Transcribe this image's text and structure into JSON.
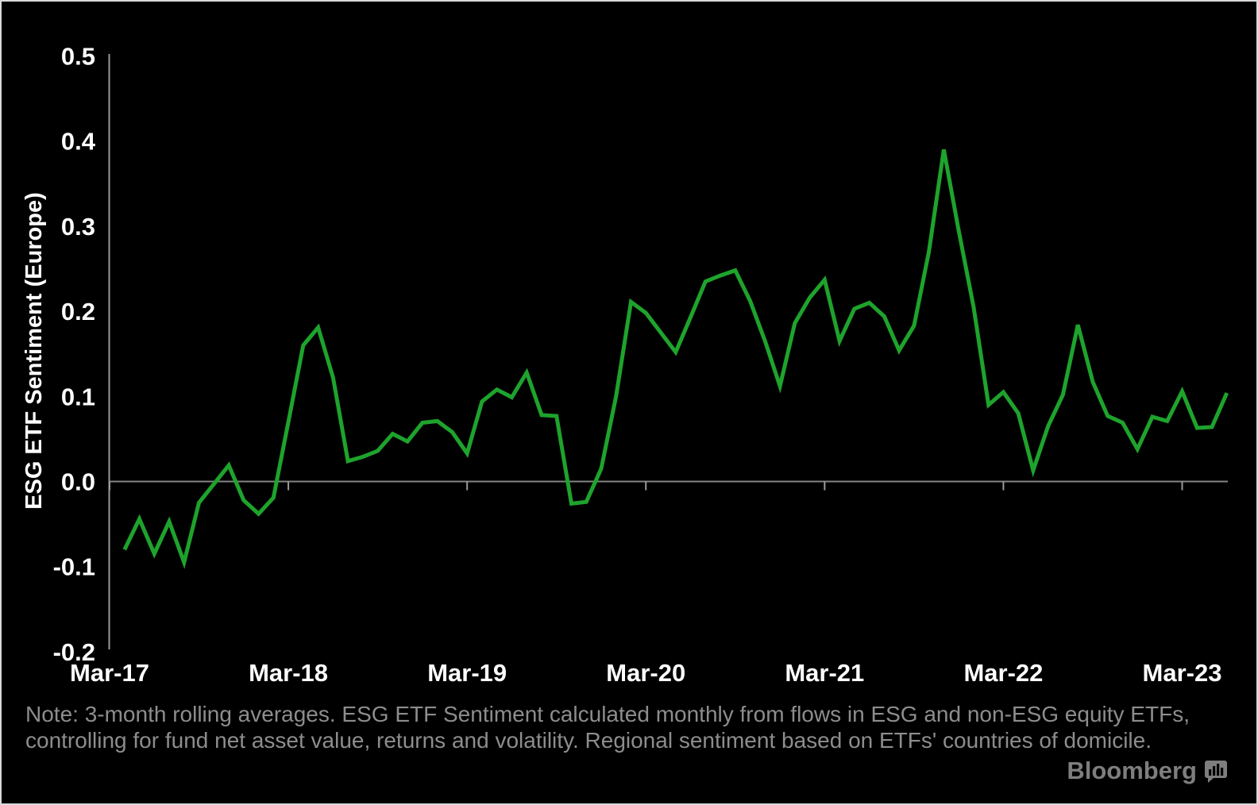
{
  "chart_data": {
    "type": "line",
    "title": "",
    "xlabel": "",
    "ylabel": "ESG ETF Sentiment (Europe)",
    "ylim": [
      -0.2,
      0.5
    ],
    "grid": "zero-line-only",
    "legend": "none",
    "line_color": "#1ea32c",
    "x": [
      "Apr-17",
      "May-17",
      "Jun-17",
      "Jul-17",
      "Aug-17",
      "Sep-17",
      "Oct-17",
      "Nov-17",
      "Dec-17",
      "Jan-18",
      "Feb-18",
      "Mar-18",
      "Apr-18",
      "May-18",
      "Jun-18",
      "Jul-18",
      "Aug-18",
      "Sep-18",
      "Oct-18",
      "Nov-18",
      "Dec-18",
      "Jan-19",
      "Feb-19",
      "Mar-19",
      "Apr-19",
      "May-19",
      "Jun-19",
      "Jul-19",
      "Aug-19",
      "Sep-19",
      "Oct-19",
      "Nov-19",
      "Dec-19",
      "Jan-20",
      "Feb-20",
      "Mar-20",
      "Apr-20",
      "May-20",
      "Jun-20",
      "Jul-20",
      "Aug-20",
      "Sep-20",
      "Oct-20",
      "Nov-20",
      "Dec-20",
      "Jan-21",
      "Feb-21",
      "Mar-21",
      "Apr-21",
      "May-21",
      "Jun-21",
      "Jul-21",
      "Aug-21",
      "Sep-21",
      "Oct-21",
      "Nov-21",
      "Dec-21",
      "Jan-22",
      "Feb-22",
      "Mar-22",
      "Apr-22",
      "May-22",
      "Jun-22",
      "Jul-22",
      "Aug-22",
      "Sep-22",
      "Oct-22",
      "Nov-22",
      "Dec-22",
      "Jan-23",
      "Feb-23",
      "Mar-23",
      "Apr-23",
      "May-23",
      "Jun-23"
    ],
    "values": [
      -0.08,
      -0.044,
      -0.085,
      -0.047,
      -0.095,
      -0.025,
      -0.003,
      0.019,
      -0.022,
      -0.038,
      -0.019,
      0.07,
      0.16,
      0.181,
      0.122,
      0.024,
      0.029,
      0.036,
      0.056,
      0.047,
      0.069,
      0.071,
      0.058,
      0.033,
      0.094,
      0.108,
      0.099,
      0.128,
      0.078,
      0.077,
      -0.026,
      -0.024,
      0.015,
      0.1,
      0.211,
      0.198,
      0.175,
      0.152,
      0.193,
      0.235,
      0.242,
      0.248,
      0.212,
      0.165,
      0.112,
      0.186,
      0.216,
      0.237,
      0.165,
      0.203,
      0.21,
      0.194,
      0.154,
      0.183,
      0.27,
      0.39,
      0.295,
      0.205,
      0.09,
      0.105,
      0.08,
      0.013,
      0.065,
      0.102,
      0.184,
      0.117,
      0.077,
      0.069,
      0.038,
      0.076,
      0.071,
      0.106,
      0.063,
      0.064,
      0.104
    ],
    "y_ticks": [
      {
        "label": "0.5",
        "value": 0.5
      },
      {
        "label": "0.4",
        "value": 0.4
      },
      {
        "label": "0.3",
        "value": 0.3
      },
      {
        "label": "0.2",
        "value": 0.2
      },
      {
        "label": "0.1",
        "value": 0.1
      },
      {
        "label": "0.0",
        "value": 0.0
      },
      {
        "label": "-0.1",
        "value": -0.1
      },
      {
        "label": "-0.2",
        "value": -0.2
      }
    ],
    "x_ticks": [
      {
        "label": "Mar-17",
        "month_offset": 0
      },
      {
        "label": "Mar-18",
        "month_offset": 12
      },
      {
        "label": "Mar-19",
        "month_offset": 24
      },
      {
        "label": "Mar-20",
        "month_offset": 36
      },
      {
        "label": "Mar-21",
        "month_offset": 48
      },
      {
        "label": "Mar-22",
        "month_offset": 60
      },
      {
        "label": "Mar-23",
        "month_offset": 72
      }
    ]
  },
  "note": {
    "line1": "Note: 3-month rolling averages. ESG ETF Sentiment calculated monthly from flows in ESG and non-ESG equity ETFs,",
    "line2": "controlling for fund net asset value, returns and volatility. Regional sentiment based on ETFs' countries of domicile."
  },
  "branding": {
    "logo_text": "Bloomberg",
    "icon": "bloomberg-terminal-icon"
  },
  "colors": {
    "background": "#000000",
    "line_green": "#1ea32c",
    "axis_gray": "#9a9a9a",
    "zero_line_gray": "#858585",
    "label_white": "#ffffff",
    "note_gray": "#8d8d8d",
    "logo_gray": "#7e7e7e"
  }
}
